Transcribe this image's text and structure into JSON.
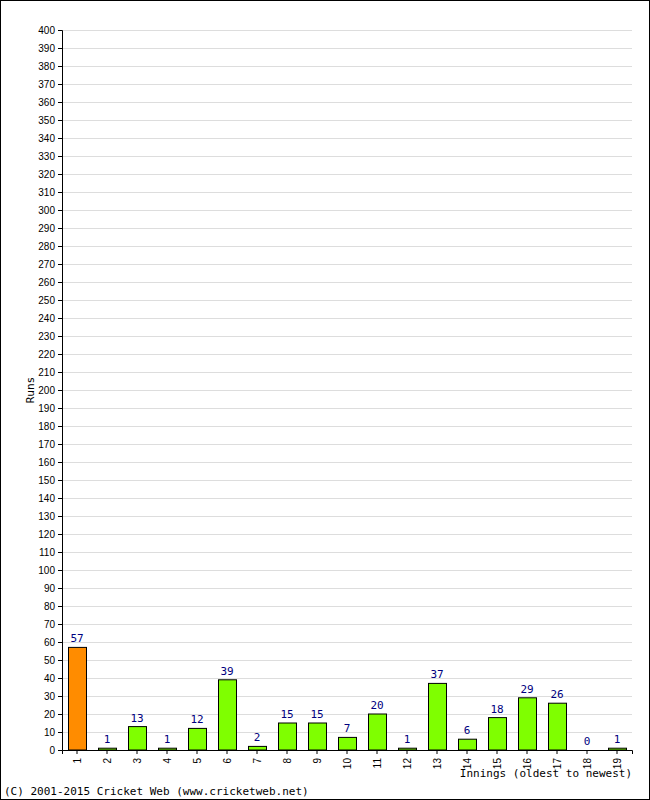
{
  "chart_data": {
    "type": "bar",
    "xlabel": "Innings (oldest to newest)",
    "ylabel": "Runs",
    "annotation": "(C) 2001-2015 Cricket Web (www.cricketweb.net)",
    "categories": [
      "1",
      "2",
      "3",
      "4",
      "5",
      "6",
      "7",
      "8",
      "9",
      "10",
      "11",
      "12",
      "13",
      "14",
      "15",
      "16",
      "17",
      "18",
      "19"
    ],
    "values": [
      57,
      1,
      13,
      1,
      12,
      39,
      2,
      15,
      15,
      7,
      20,
      1,
      37,
      6,
      18,
      29,
      26,
      0,
      1
    ],
    "colors": [
      "#ff8c00",
      "#7fff00",
      "#7fff00",
      "#7fff00",
      "#7fff00",
      "#7fff00",
      "#7fff00",
      "#7fff00",
      "#7fff00",
      "#7fff00",
      "#7fff00",
      "#7fff00",
      "#7fff00",
      "#7fff00",
      "#7fff00",
      "#7fff00",
      "#7fff00",
      "#7fff00",
      "#7fff00"
    ],
    "ylim": [
      0,
      400
    ],
    "yticks": [
      0,
      10,
      20,
      30,
      40,
      50,
      60,
      70,
      80,
      90,
      100,
      110,
      120,
      130,
      140,
      150,
      160,
      170,
      180,
      190,
      200,
      210,
      220,
      230,
      240,
      250,
      260,
      270,
      280,
      290,
      300,
      310,
      320,
      330,
      340,
      350,
      360,
      370,
      380,
      390,
      400
    ],
    "grid": true,
    "data_labels": true
  }
}
